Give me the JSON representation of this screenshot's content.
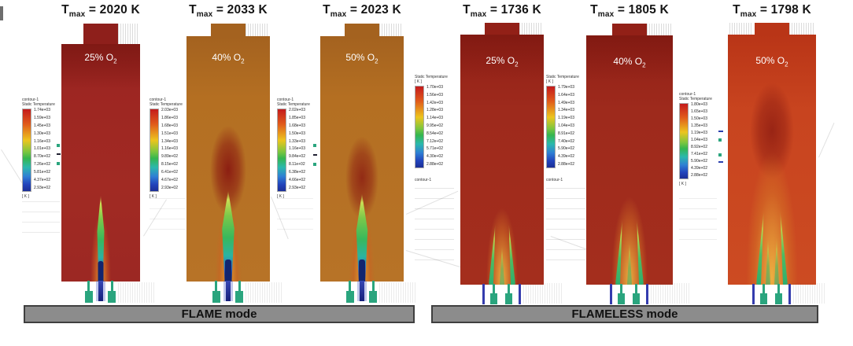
{
  "figure": {
    "tmax_t": "T",
    "tmax_sub": "max",
    "o2_sub": "2",
    "modes": [
      {
        "label": "FLAME mode"
      },
      {
        "label": "FLAMELESS mode"
      }
    ],
    "panels": [
      {
        "mode": "FLAME",
        "tmax_eq": "= 2020 K",
        "o2": "25% O",
        "cb": {
          "line1": "contour-1",
          "line2": "Static Temperature",
          "footer": "[ K ]",
          "ticks": [
            "1.74e+03",
            "1.59e+03",
            "1.45e+03",
            "1.30e+03",
            "1.16e+03",
            "1.01e+03",
            "8.70e+02",
            "7.26e+02",
            "5.81e+02",
            "4.37e+02",
            "2.93e+02"
          ]
        }
      },
      {
        "mode": "FLAME",
        "tmax_eq": "= 2033 K",
        "o2": "40% O",
        "cb": {
          "line1": "contour-1",
          "line2": "Static Temperature",
          "footer": "[ K ]",
          "ticks": [
            "2.03e+03",
            "1.86e+03",
            "1.68e+03",
            "1.51e+03",
            "1.34e+03",
            "1.16e+03",
            "9.89e+02",
            "8.15e+02",
            "6.41e+02",
            "4.67e+02",
            "2.93e+02"
          ]
        }
      },
      {
        "mode": "FLAME",
        "tmax_eq": "= 2023 K",
        "o2": "50% O",
        "cb": {
          "line1": "contour-1",
          "line2": "Static Temperature",
          "footer": "[ K ]",
          "ticks": [
            "2.02e+03",
            "1.85e+03",
            "1.68e+03",
            "1.50e+03",
            "1.33e+03",
            "1.16e+03",
            "9.84e+02",
            "8.11e+02",
            "6.38e+02",
            "4.66e+02",
            "2.93e+02"
          ]
        }
      },
      {
        "mode": "FLAMELESS",
        "tmax_eq": "= 1736 K",
        "o2": "25% O",
        "cb": {
          "line1": "Static Temperature",
          "line2": "[ K ]",
          "footer": "contour-1",
          "ticks": [
            "1.70e+03",
            "1.56e+03",
            "1.42e+03",
            "1.28e+03",
            "1.14e+03",
            "9.95e+02",
            "8.54e+02",
            "7.12e+02",
            "5.71e+02",
            "4.30e+02",
            "2.88e+02"
          ]
        }
      },
      {
        "mode": "FLAMELESS",
        "tmax_eq": "= 1805 K",
        "o2": "40% O",
        "cb": {
          "line1": "Static Temperature",
          "line2": "[ K ]",
          "footer": "contour-1",
          "ticks": [
            "1.79e+03",
            "1.64e+03",
            "1.49e+03",
            "1.34e+03",
            "1.19e+03",
            "1.04e+03",
            "8.91e+02",
            "7.40e+02",
            "5.90e+02",
            "4.39e+02",
            "2.88e+02"
          ]
        }
      },
      {
        "mode": "FLAMELESS",
        "tmax_eq": "= 1798 K",
        "o2": "50% O",
        "cb": {
          "line1": "contour-1",
          "line2": "Static Temperature",
          "footer": "[ K ]",
          "ticks": [
            "1.80e+03",
            "1.65e+03",
            "1.50e+03",
            "1.35e+03",
            "1.19e+03",
            "1.04e+03",
            "8.92e+02",
            "7.41e+02",
            "5.90e+02",
            "4.39e+02",
            "2.88e+02"
          ]
        }
      }
    ]
  },
  "colors": {
    "chamber_dark_red": "#9d2622",
    "chamber_orange": "#b46f22",
    "chamber_red_fl": "#9e2a1c",
    "chamber_orange_red": "#c8441f",
    "plume_dark_red": "#8a1f16",
    "flame_green": "#38b85c",
    "flame_blue_core": "#152b85",
    "flame_yellow": "#ccdf55",
    "plume_yellow_orange": "#eeb442",
    "burner_teal": "#2aa57e",
    "burner_blue": "#343cae",
    "mode_bar_gray": "#8c8c8c",
    "mode_bar_border": "#3f3f3f",
    "title_text": "#151515",
    "cbar_red": "#c41b1c",
    "cbar_blue": "#1c2f96"
  },
  "chart_data": [
    {
      "type": "heatmap",
      "mode": "FLAME",
      "o2_percent": 25,
      "tmax_k": 2020,
      "title": "Tmax = 2020 K",
      "annotation": "25% O2",
      "colorbar": {
        "label": "Static Temperature",
        "unit": "K",
        "min": 293,
        "max": 1740,
        "ticks": [
          1740,
          1590,
          1450,
          1300,
          1160,
          1010,
          870,
          726,
          581,
          437,
          293
        ]
      },
      "description": "Dark red chamber, single narrow central jet flame with blue base and green body"
    },
    {
      "type": "heatmap",
      "mode": "FLAME",
      "o2_percent": 40,
      "tmax_k": 2033,
      "title": "Tmax = 2033 K",
      "annotation": "40% O2",
      "colorbar": {
        "label": "Static Temperature",
        "unit": "K",
        "min": 293,
        "max": 2030,
        "ticks": [
          2030,
          1860,
          1680,
          1510,
          1340,
          1160,
          989,
          815,
          641,
          467,
          293
        ]
      },
      "description": "Orange chamber, central green/blue cone flame with dark red plume above"
    },
    {
      "type": "heatmap",
      "mode": "FLAME",
      "o2_percent": 50,
      "tmax_k": 2023,
      "title": "Tmax = 2023 K",
      "annotation": "50% O2",
      "colorbar": {
        "label": "Static Temperature",
        "unit": "K",
        "min": 293,
        "max": 2020,
        "ticks": [
          2020,
          1850,
          1680,
          1500,
          1330,
          1160,
          984,
          811,
          638,
          466,
          293
        ]
      },
      "description": "Orange chamber, central green/blue cone flame with dark red plume above"
    },
    {
      "type": "heatmap",
      "mode": "FLAMELESS",
      "o2_percent": 25,
      "tmax_k": 1736,
      "title": "Tmax = 1736 K",
      "annotation": "25% O2",
      "colorbar": {
        "label": "Static Temperature",
        "unit": "K",
        "min": 288,
        "max": 1700,
        "ticks": [
          1700,
          1560,
          1420,
          1280,
          1140,
          995,
          854,
          712,
          571,
          430,
          288
        ]
      },
      "description": "Dark red chamber, two small green jets merging into diffuse yellow plume"
    },
    {
      "type": "heatmap",
      "mode": "FLAMELESS",
      "o2_percent": 40,
      "tmax_k": 1805,
      "title": "Tmax = 1805 K",
      "annotation": "40% O2",
      "colorbar": {
        "label": "Static Temperature",
        "unit": "K",
        "min": 288,
        "max": 1790,
        "ticks": [
          1790,
          1640,
          1490,
          1340,
          1190,
          1040,
          891,
          740,
          590,
          439,
          288
        ]
      },
      "description": "Dark red chamber, two green jets merging into diffuse yellow plume"
    },
    {
      "type": "heatmap",
      "mode": "FLAMELESS",
      "o2_percent": 50,
      "tmax_k": 1798,
      "title": "Tmax = 1798 K",
      "annotation": "50% O2",
      "colorbar": {
        "label": "Static Temperature",
        "unit": "K",
        "min": 288,
        "max": 1800,
        "ticks": [
          1800,
          1650,
          1500,
          1350,
          1190,
          1040,
          892,
          741,
          590,
          439,
          288
        ]
      },
      "description": "Orange-red chamber, wide yellow plume with green jets and dark red blob above"
    }
  ]
}
